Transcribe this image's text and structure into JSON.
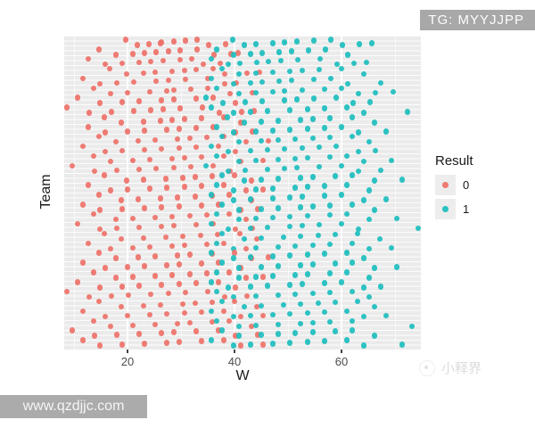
{
  "watermarks": {
    "top_right": "TG: MYYJJPP",
    "bottom_left": "www.qzdjjc.com",
    "bottom_right": "小释界"
  },
  "chart_data": {
    "type": "scatter",
    "title": "",
    "xlabel": "W",
    "ylabel": "Team",
    "xlim": [
      8,
      76
    ],
    "x_ticks": [
      "20",
      "40",
      "60"
    ],
    "grid": true,
    "panel_background": "#ebebeb",
    "y_tick_labels_visible": false,
    "legend": {
      "title": "Result",
      "position": "right",
      "items": [
        {
          "label": "0",
          "color": "#ee7168"
        },
        {
          "label": "1",
          "color": "#1cbdbe"
        }
      ]
    },
    "rows": [
      {
        "w0": [
          20,
          22,
          24,
          26,
          26,
          29,
          31,
          33,
          35,
          38
        ],
        "w1": [
          40,
          42,
          44,
          47,
          49,
          52,
          55,
          58,
          60,
          63,
          66
        ]
      },
      {
        "w0": [
          15,
          18,
          21,
          23,
          25,
          28,
          30,
          33,
          36,
          39,
          41
        ],
        "w1": [
          37,
          40,
          43,
          45,
          48,
          51,
          54,
          57,
          61
        ]
      },
      {
        "w0": [
          13,
          16,
          19,
          22,
          24,
          27,
          30,
          32,
          34,
          37
        ],
        "w1": [
          36,
          39,
          41,
          44,
          46,
          49,
          52,
          56,
          59,
          62,
          65
        ]
      },
      {
        "w0": [
          17,
          20,
          23,
          25,
          28,
          31,
          33,
          36,
          38,
          42,
          45
        ],
        "w1": [
          38,
          41,
          44,
          47,
          50,
          53,
          56,
          60,
          64
        ]
      },
      {
        "w0": [
          12,
          15,
          18,
          21,
          25,
          28,
          31,
          35,
          38,
          40
        ],
        "w1": [
          36,
          40,
          43,
          45,
          48,
          51,
          55,
          58,
          61,
          67
        ]
      },
      {
        "w0": [
          14,
          17,
          20,
          24,
          27,
          29,
          32,
          35,
          39,
          43
        ],
        "w1": [
          37,
          41,
          44,
          47,
          49,
          53,
          57,
          60,
          63,
          66,
          70
        ]
      },
      {
        "w0": [
          11,
          15,
          19,
          22,
          26,
          29,
          33,
          36,
          40
        ],
        "w1": [
          35,
          38,
          42,
          45,
          49,
          52,
          55,
          59,
          62,
          65
        ]
      },
      {
        "w0": [
          9,
          13,
          17,
          21,
          24,
          27,
          30,
          34,
          37,
          41,
          44
        ],
        "w1": [
          36,
          40,
          43,
          46,
          50,
          54,
          57,
          61,
          64,
          72
        ]
      },
      {
        "w0": [
          16,
          19,
          23,
          26,
          28,
          31,
          34,
          38,
          41
        ],
        "w1": [
          39,
          42,
          45,
          48,
          52,
          55,
          58,
          62,
          66
        ]
      },
      {
        "w0": [
          13,
          16,
          20,
          23,
          27,
          30,
          33,
          36,
          40,
          43
        ],
        "w1": [
          37,
          40,
          44,
          47,
          50,
          54,
          57,
          60,
          63,
          68
        ]
      },
      {
        "w0": [
          15,
          18,
          22,
          25,
          29,
          32,
          35,
          38,
          42,
          46
        ],
        "w1": [
          38,
          41,
          45,
          48,
          51,
          55,
          58,
          62,
          65
        ]
      },
      {
        "w0": [
          12,
          16,
          19,
          23,
          26,
          30,
          33,
          37,
          40
        ],
        "w1": [
          36,
          39,
          43,
          46,
          49,
          53,
          56,
          59,
          63,
          66
        ]
      },
      {
        "w0": [
          14,
          17,
          21,
          24,
          28,
          31,
          34,
          38,
          41,
          45
        ],
        "w1": [
          37,
          41,
          44,
          48,
          51,
          54,
          58,
          61,
          64,
          69
        ]
      },
      {
        "w0": [
          10,
          14,
          18,
          22,
          25,
          29,
          32,
          36,
          39
        ],
        "w1": [
          35,
          39,
          42,
          46,
          49,
          52,
          56,
          60,
          63,
          67
        ]
      },
      {
        "w0": [
          16,
          20,
          23,
          27,
          30,
          33,
          36,
          40,
          43
        ],
        "w1": [
          38,
          42,
          45,
          48,
          52,
          55,
          59,
          62,
          66,
          71
        ]
      },
      {
        "w0": [
          13,
          17,
          20,
          24,
          27,
          31,
          34,
          38,
          42,
          45
        ],
        "w1": [
          37,
          40,
          44,
          47,
          51,
          54,
          57,
          61,
          65
        ]
      },
      {
        "w0": [
          15,
          19,
          22,
          26,
          29,
          33,
          36,
          39,
          43
        ],
        "w1": [
          36,
          40,
          43,
          47,
          50,
          53,
          57,
          60,
          64,
          68
        ]
      },
      {
        "w0": [
          12,
          15,
          19,
          23,
          26,
          30,
          34,
          37,
          41,
          44
        ],
        "w1": [
          38,
          41,
          45,
          48,
          52,
          55,
          58,
          62,
          66
        ]
      },
      {
        "w0": [
          14,
          18,
          21,
          25,
          28,
          32,
          35,
          39,
          42
        ],
        "w1": [
          37,
          41,
          44,
          47,
          50,
          54,
          58,
          61,
          65,
          70
        ]
      },
      {
        "w0": [
          11,
          15,
          18,
          22,
          26,
          29,
          33,
          36,
          40,
          43
        ],
        "w1": [
          36,
          39,
          43,
          46,
          50,
          53,
          56,
          60,
          63,
          74
        ]
      },
      {
        "w0": [
          16,
          19,
          23,
          27,
          30,
          34,
          37,
          41,
          44
        ],
        "w1": [
          38,
          42,
          45,
          49,
          52,
          56,
          59,
          63,
          67
        ]
      },
      {
        "w0": [
          13,
          17,
          21,
          24,
          28,
          31,
          35,
          38,
          42
        ],
        "w1": [
          37,
          40,
          44,
          48,
          51,
          55,
          58,
          62,
          65,
          69
        ]
      },
      {
        "w0": [
          15,
          18,
          22,
          25,
          29,
          32,
          36,
          40,
          43,
          46
        ],
        "w1": [
          36,
          40,
          43,
          47,
          50,
          54,
          57,
          61,
          64
        ]
      },
      {
        "w0": [
          12,
          16,
          20,
          23,
          27,
          30,
          34,
          37,
          41
        ],
        "w1": [
          38,
          41,
          45,
          48,
          52,
          55,
          59,
          62,
          66,
          70
        ]
      },
      {
        "w0": [
          14,
          18,
          21,
          25,
          28,
          32,
          35,
          39,
          42,
          45
        ],
        "w1": [
          37,
          41,
          44,
          47,
          51,
          54,
          58,
          61,
          65
        ]
      },
      {
        "w0": [
          11,
          15,
          19,
          22,
          26,
          30,
          33,
          37,
          40
        ],
        "w1": [
          36,
          39,
          43,
          46,
          50,
          53,
          57,
          60,
          64,
          67
        ]
      },
      {
        "w0": [
          9,
          13,
          17,
          20,
          24,
          28,
          31,
          35,
          38,
          42
        ],
        "w1": [
          37,
          40,
          44,
          48,
          51,
          55,
          58,
          62,
          65
        ]
      },
      {
        "w0": [
          15,
          19,
          23,
          26,
          30,
          33,
          36,
          40,
          44
        ],
        "w1": [
          38,
          42,
          45,
          49,
          52,
          56,
          59,
          63,
          66
        ]
      },
      {
        "w0": [
          12,
          16,
          20,
          24,
          27,
          31,
          34,
          38,
          41,
          45
        ],
        "w1": [
          36,
          40,
          43,
          47,
          50,
          54,
          57,
          61,
          64,
          68
        ]
      },
      {
        "w0": [
          14,
          17,
          21,
          25,
          29,
          32,
          36,
          39,
          43
        ],
        "w1": [
          37,
          41,
          44,
          48,
          52,
          55,
          58,
          62,
          73
        ]
      },
      {
        "w0": [
          10,
          14,
          18,
          22,
          26,
          29,
          33,
          37,
          40,
          44
        ],
        "w1": [
          38,
          41,
          45,
          48,
          51,
          55,
          59,
          62,
          66
        ]
      },
      {
        "w0": [
          12,
          15,
          19,
          23,
          27,
          30,
          34,
          38,
          41,
          45
        ],
        "w1": [
          36,
          40,
          43,
          47,
          50,
          54,
          57,
          61,
          64,
          71
        ]
      }
    ]
  }
}
